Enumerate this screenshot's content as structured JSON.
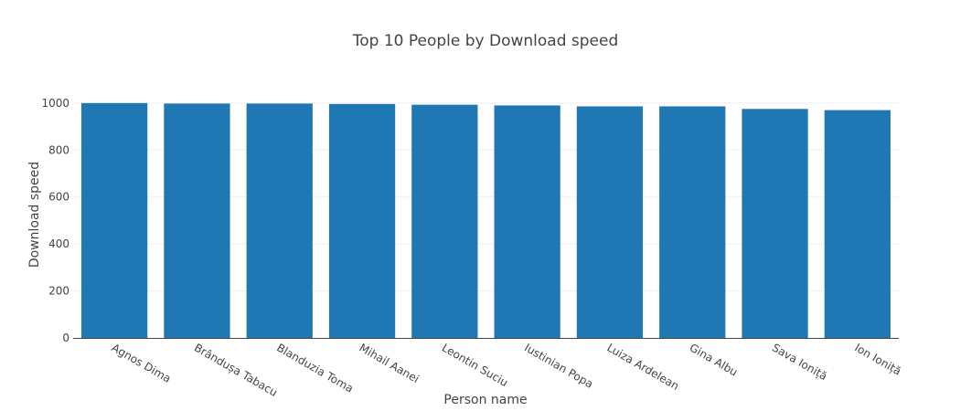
{
  "chart_data": {
    "type": "bar",
    "title": "Top 10 People by Download speed",
    "xlabel": "Person name",
    "ylabel": "Download speed",
    "ylim": [
      0,
      1050
    ],
    "yticks": [
      0,
      200,
      400,
      600,
      800,
      1000
    ],
    "grid": true,
    "legend": "none",
    "color": "#1f77b4",
    "categories": [
      "Agnos Dima",
      "Brândușa Tabacu",
      "Blanduzia Toma",
      "Mihail Aanei",
      "Leontin Suciu",
      "Iustinian Popa",
      "Luiza Ardelean",
      "Gina Albu",
      "Sava Ioniță",
      "Ion Ioniță"
    ],
    "values": [
      1000,
      998,
      998,
      996,
      993,
      990,
      986,
      986,
      975,
      970
    ]
  }
}
